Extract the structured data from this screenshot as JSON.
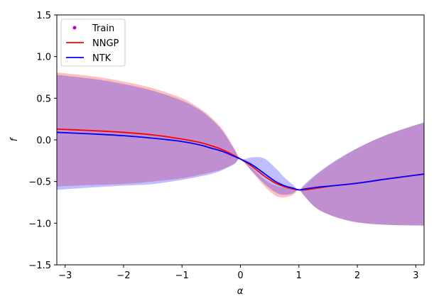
{
  "chart_data": {
    "type": "line",
    "xlabel": "α",
    "ylabel": "f",
    "xlim": [
      -3.1416,
      3.1416
    ],
    "ylim": [
      -1.5,
      1.5
    ],
    "xticks": [
      -3,
      -2,
      -1,
      0,
      1,
      2,
      3
    ],
    "yticks": [
      -1.5,
      -1.0,
      -0.5,
      0.0,
      0.5,
      1.0,
      1.5
    ],
    "xtick_labels": [
      "−3",
      "−2",
      "−1",
      "0",
      "1",
      "2",
      "3"
    ],
    "ytick_labels": [
      "−1.5",
      "−1.0",
      "−0.5",
      "0.0",
      "0.5",
      "1.0",
      "1.5"
    ],
    "grid": false,
    "legend_position": "upper-left",
    "legend": [
      {
        "label": "Train",
        "style": "marker",
        "color": "#bf00bf"
      },
      {
        "label": "NNGP",
        "style": "line",
        "color": "#ff0000"
      },
      {
        "label": "NTK",
        "style": "line",
        "color": "#0000ff"
      }
    ],
    "series": [
      {
        "name": "NNGP",
        "color": "#ff0000",
        "band_color": "#ff0000",
        "band_opacity": 0.25,
        "x": [
          -3.1416,
          -2.5,
          -2.0,
          -1.5,
          -1.0,
          -0.7,
          -0.5,
          -0.3,
          -0.1,
          0.0,
          0.2,
          0.4,
          0.6,
          0.75,
          0.9,
          1.0,
          1.1,
          1.3,
          1.6,
          2.0,
          2.5,
          3.1416
        ],
        "mean": [
          0.13,
          0.11,
          0.09,
          0.06,
          0.01,
          -0.03,
          -0.07,
          -0.12,
          -0.19,
          -0.23,
          -0.32,
          -0.43,
          -0.52,
          -0.56,
          -0.59,
          -0.6,
          -0.6,
          -0.58,
          -0.55,
          -0.52,
          -0.47,
          -0.41
        ],
        "upper": [
          0.81,
          0.76,
          0.7,
          0.62,
          0.5,
          0.38,
          0.27,
          0.12,
          -0.11,
          -0.23,
          -0.34,
          -0.47,
          -0.55,
          -0.57,
          -0.58,
          -0.6,
          -0.55,
          -0.42,
          -0.27,
          -0.1,
          0.06,
          0.21
        ],
        "lower": [
          -0.56,
          -0.54,
          -0.53,
          -0.5,
          -0.46,
          -0.42,
          -0.39,
          -0.35,
          -0.28,
          -0.23,
          -0.38,
          -0.55,
          -0.67,
          -0.69,
          -0.66,
          -0.6,
          -0.68,
          -0.82,
          -0.92,
          -0.99,
          -1.02,
          -1.03
        ]
      },
      {
        "name": "NTK",
        "color": "#0000ff",
        "band_color": "#0000ff",
        "band_opacity": 0.25,
        "x": [
          -3.1416,
          -2.5,
          -2.0,
          -1.5,
          -1.0,
          -0.7,
          -0.5,
          -0.3,
          -0.1,
          0.0,
          0.2,
          0.4,
          0.6,
          0.75,
          0.9,
          1.0,
          1.1,
          1.3,
          1.6,
          2.0,
          2.5,
          3.1416
        ],
        "mean": [
          0.09,
          0.07,
          0.05,
          0.02,
          -0.02,
          -0.06,
          -0.1,
          -0.14,
          -0.2,
          -0.23,
          -0.3,
          -0.4,
          -0.5,
          -0.55,
          -0.58,
          -0.6,
          -0.59,
          -0.57,
          -0.55,
          -0.52,
          -0.47,
          -0.41
        ],
        "upper": [
          0.78,
          0.73,
          0.67,
          0.59,
          0.47,
          0.36,
          0.25,
          0.1,
          -0.12,
          -0.23,
          -0.21,
          -0.22,
          -0.34,
          -0.45,
          -0.54,
          -0.6,
          -0.53,
          -0.41,
          -0.26,
          -0.1,
          0.06,
          0.21
        ],
        "lower": [
          -0.6,
          -0.57,
          -0.55,
          -0.53,
          -0.48,
          -0.44,
          -0.41,
          -0.36,
          -0.29,
          -0.23,
          -0.38,
          -0.52,
          -0.63,
          -0.66,
          -0.64,
          -0.6,
          -0.68,
          -0.82,
          -0.92,
          -0.99,
          -1.02,
          -1.03
        ]
      }
    ]
  }
}
